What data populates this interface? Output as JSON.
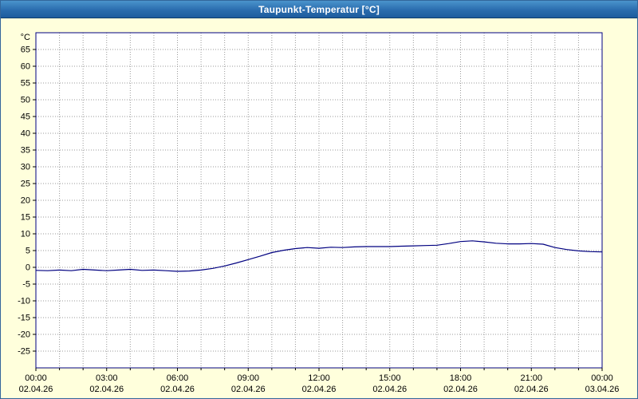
{
  "window": {
    "title": "Taupunkt-Temperatur [°C]"
  },
  "chart_data": {
    "type": "line",
    "title": "Taupunkt-Temperatur [°C]",
    "ylabel": "°C",
    "xlabel": "",
    "ylim": [
      -30,
      70
    ],
    "ytick_step": 5,
    "yticks": [
      -25,
      -20,
      -15,
      -10,
      -5,
      0,
      5,
      10,
      15,
      20,
      25,
      30,
      35,
      40,
      45,
      50,
      55,
      60,
      65
    ],
    "xlim_hours": [
      0,
      24
    ],
    "grid": true,
    "legend": "none",
    "xticks": [
      {
        "hour": 0,
        "time": "00:00",
        "date": "02.04.26"
      },
      {
        "hour": 3,
        "time": "03:00",
        "date": "02.04.26"
      },
      {
        "hour": 6,
        "time": "06:00",
        "date": "02.04.26"
      },
      {
        "hour": 9,
        "time": "09:00",
        "date": "02.04.26"
      },
      {
        "hour": 12,
        "time": "12:00",
        "date": "02.04.26"
      },
      {
        "hour": 15,
        "time": "15:00",
        "date": "02.04.26"
      },
      {
        "hour": 18,
        "time": "18:00",
        "date": "02.04.26"
      },
      {
        "hour": 21,
        "time": "21:00",
        "date": "02.04.26"
      },
      {
        "hour": 24,
        "time": "00:00",
        "date": "03.04.26"
      }
    ],
    "series": [
      {
        "name": "Taupunkt-Temperatur",
        "x": [
          0,
          0.5,
          1,
          1.5,
          2,
          2.5,
          3,
          3.5,
          4,
          4.5,
          5,
          5.5,
          6,
          6.5,
          7,
          7.5,
          8,
          8.5,
          9,
          9.5,
          10,
          10.5,
          11,
          11.5,
          12,
          12.5,
          13,
          13.5,
          14,
          14.5,
          15,
          15.5,
          16,
          16.5,
          17,
          17.5,
          18,
          18.5,
          19,
          19.5,
          20,
          20.5,
          21,
          21.5,
          22,
          22.5,
          23,
          23.5,
          24
        ],
        "values": [
          -0.9,
          -1.0,
          -0.8,
          -1.0,
          -0.6,
          -0.8,
          -1.0,
          -0.8,
          -0.6,
          -0.9,
          -0.8,
          -1.0,
          -1.2,
          -1.1,
          -0.8,
          -0.3,
          0.4,
          1.3,
          2.3,
          3.3,
          4.4,
          5.1,
          5.6,
          5.9,
          5.7,
          6.0,
          5.9,
          6.1,
          6.2,
          6.2,
          6.2,
          6.3,
          6.4,
          6.5,
          6.6,
          7.1,
          7.7,
          7.9,
          7.6,
          7.2,
          7.0,
          7.0,
          7.1,
          6.9,
          5.9,
          5.3,
          4.9,
          4.7,
          4.6
        ]
      }
    ],
    "colors": {
      "line": "#000080",
      "axis": "#000080",
      "grid": "#999999",
      "plot_bg": "#ffffff",
      "page_bg": "#ffffdc",
      "tick_text": "#000000",
      "title_bg": "#2a6cae",
      "title_text": "#ffffff"
    }
  }
}
